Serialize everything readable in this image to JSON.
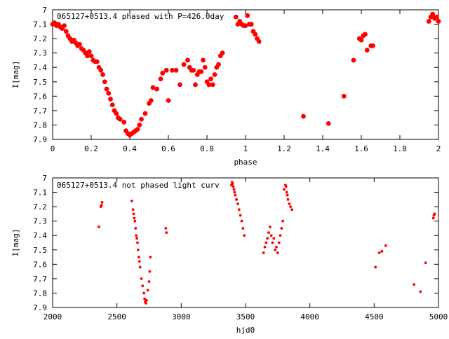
{
  "chart_data": [
    {
      "type": "scatter",
      "title": "065127+0513.4 phased with P=426.0day",
      "xlabel": "phase",
      "ylabel": "I[mag]",
      "xlim": [
        0,
        2
      ],
      "ylim": [
        7.9,
        7.0
      ],
      "y_inverted": true,
      "grid": false,
      "legend": "none",
      "marker": "filled-circle",
      "point_color": "#ff0000",
      "xticks": [
        0,
        0.2,
        0.4,
        0.6,
        0.8,
        1,
        1.2,
        1.4,
        1.6,
        1.8,
        2
      ],
      "xtick_labels": [
        "0",
        "0.2",
        "0.4",
        "0.6",
        "0.8",
        "1",
        "1.2",
        "1.4",
        "1.6",
        "1.8",
        "2"
      ],
      "yticks": [
        7.0,
        7.1,
        7.2,
        7.3,
        7.4,
        7.5,
        7.6,
        7.7,
        7.8,
        7.9
      ],
      "ytick_labels": [
        "7",
        "7.1",
        "7.2",
        "7.3",
        "7.4",
        "7.5",
        "7.6",
        "7.7",
        "7.8",
        "7.9"
      ],
      "points": [
        [
          0.0,
          7.1
        ],
        [
          0.01,
          7.09
        ],
        [
          0.02,
          7.11
        ],
        [
          0.03,
          7.1
        ],
        [
          0.04,
          7.12
        ],
        [
          0.05,
          7.13
        ],
        [
          0.06,
          7.11
        ],
        [
          0.07,
          7.15
        ],
        [
          0.08,
          7.18
        ],
        [
          0.09,
          7.2
        ],
        [
          0.1,
          7.22
        ],
        [
          0.11,
          7.21
        ],
        [
          0.12,
          7.23
        ],
        [
          0.13,
          7.25
        ],
        [
          0.14,
          7.24
        ],
        [
          0.15,
          7.27
        ],
        [
          0.16,
          7.28
        ],
        [
          0.17,
          7.3
        ],
        [
          0.18,
          7.32
        ],
        [
          0.19,
          7.29
        ],
        [
          0.2,
          7.32
        ],
        [
          0.21,
          7.35
        ],
        [
          0.22,
          7.36
        ],
        [
          0.23,
          7.36
        ],
        [
          0.24,
          7.4
        ],
        [
          0.25,
          7.42
        ],
        [
          0.26,
          7.45
        ],
        [
          0.27,
          7.5
        ],
        [
          0.28,
          7.55
        ],
        [
          0.29,
          7.58
        ],
        [
          0.3,
          7.62
        ],
        [
          0.31,
          7.66
        ],
        [
          0.32,
          7.7
        ],
        [
          0.33,
          7.72
        ],
        [
          0.34,
          7.75
        ],
        [
          0.35,
          7.76
        ],
        [
          0.37,
          7.78
        ],
        [
          0.38,
          7.84
        ],
        [
          0.39,
          7.86
        ],
        [
          0.4,
          7.87
        ],
        [
          0.41,
          7.86
        ],
        [
          0.42,
          7.85
        ],
        [
          0.43,
          7.84
        ],
        [
          0.44,
          7.83
        ],
        [
          0.45,
          7.8
        ],
        [
          0.46,
          7.76
        ],
        [
          0.48,
          7.72
        ],
        [
          0.5,
          7.65
        ],
        [
          0.51,
          7.63
        ],
        [
          0.52,
          7.54
        ],
        [
          0.54,
          7.55
        ],
        [
          0.56,
          7.48
        ],
        [
          0.57,
          7.44
        ],
        [
          0.59,
          7.42
        ],
        [
          0.6,
          7.63
        ],
        [
          0.62,
          7.42
        ],
        [
          0.64,
          7.42
        ],
        [
          0.66,
          7.52
        ],
        [
          0.68,
          7.38
        ],
        [
          0.7,
          7.35
        ],
        [
          0.71,
          7.4
        ],
        [
          0.72,
          7.42
        ],
        [
          0.73,
          7.42
        ],
        [
          0.74,
          7.52
        ],
        [
          0.75,
          7.45
        ],
        [
          0.76,
          7.43
        ],
        [
          0.77,
          7.43
        ],
        [
          0.78,
          7.35
        ],
        [
          0.79,
          7.4
        ],
        [
          0.8,
          7.5
        ],
        [
          0.81,
          7.52
        ],
        [
          0.82,
          7.48
        ],
        [
          0.83,
          7.52
        ],
        [
          0.84,
          7.45
        ],
        [
          0.85,
          7.4
        ],
        [
          0.86,
          7.38
        ],
        [
          0.87,
          7.32
        ],
        [
          0.88,
          7.3
        ],
        [
          0.95,
          7.05
        ],
        [
          0.96,
          7.1
        ],
        [
          0.97,
          7.08
        ],
        [
          0.98,
          7.1
        ],
        [
          0.99,
          7.11
        ],
        [
          1.0,
          7.11
        ],
        [
          1.01,
          7.04
        ],
        [
          1.02,
          7.1
        ],
        [
          1.03,
          7.1
        ],
        [
          1.04,
          7.15
        ],
        [
          1.05,
          7.17
        ],
        [
          1.06,
          7.2
        ],
        [
          1.07,
          7.22
        ],
        [
          1.3,
          7.74
        ],
        [
          1.43,
          7.79
        ],
        [
          1.51,
          7.6
        ],
        [
          1.56,
          7.35
        ],
        [
          1.59,
          7.2
        ],
        [
          1.6,
          7.21
        ],
        [
          1.61,
          7.18
        ],
        [
          1.62,
          7.17
        ],
        [
          1.63,
          7.28
        ],
        [
          1.65,
          7.25
        ],
        [
          1.66,
          7.25
        ],
        [
          1.95,
          7.08
        ],
        [
          1.96,
          7.05
        ],
        [
          1.97,
          7.03
        ],
        [
          1.98,
          7.06
        ],
        [
          1.99,
          7.05
        ],
        [
          2.0,
          7.08
        ]
      ]
    },
    {
      "type": "scatter",
      "title": "065127+0513.4 not phased light curv",
      "xlabel": "hjd0",
      "ylabel": "I[mag]",
      "xlim": [
        2000,
        5000
      ],
      "ylim": [
        7.9,
        7.0
      ],
      "y_inverted": true,
      "grid": false,
      "legend": "none",
      "marker": "small-dot",
      "point_color": "#ff0000",
      "xticks": [
        2000,
        2500,
        3000,
        3500,
        4000,
        4500,
        5000
      ],
      "xtick_labels": [
        "2000",
        "2500",
        "3000",
        "3500",
        "4000",
        "4500",
        "5000"
      ],
      "yticks": [
        7.0,
        7.1,
        7.2,
        7.3,
        7.4,
        7.5,
        7.6,
        7.7,
        7.8,
        7.9
      ],
      "ytick_labels": [
        "7",
        "7.1",
        "7.2",
        "7.3",
        "7.4",
        "7.5",
        "7.6",
        "7.7",
        "7.8",
        "7.9"
      ],
      "points": [
        [
          2360,
          7.34
        ],
        [
          2375,
          7.2
        ],
        [
          2380,
          7.19
        ],
        [
          2385,
          7.17
        ],
        [
          2615,
          7.16
        ],
        [
          2625,
          7.22
        ],
        [
          2630,
          7.25
        ],
        [
          2635,
          7.28
        ],
        [
          2640,
          7.3
        ],
        [
          2645,
          7.35
        ],
        [
          2650,
          7.4
        ],
        [
          2655,
          7.42
        ],
        [
          2660,
          7.45
        ],
        [
          2665,
          7.5
        ],
        [
          2670,
          7.55
        ],
        [
          2675,
          7.58
        ],
        [
          2680,
          7.62
        ],
        [
          2690,
          7.7
        ],
        [
          2700,
          7.75
        ],
        [
          2710,
          7.8
        ],
        [
          2715,
          7.84
        ],
        [
          2720,
          7.86
        ],
        [
          2725,
          7.87
        ],
        [
          2730,
          7.85
        ],
        [
          2740,
          7.78
        ],
        [
          2750,
          7.72
        ],
        [
          2755,
          7.65
        ],
        [
          2760,
          7.55
        ],
        [
          2880,
          7.35
        ],
        [
          2885,
          7.38
        ],
        [
          3390,
          7.05
        ],
        [
          3395,
          7.03
        ],
        [
          3400,
          7.04
        ],
        [
          3405,
          7.06
        ],
        [
          3410,
          7.08
        ],
        [
          3415,
          7.1
        ],
        [
          3420,
          7.12
        ],
        [
          3430,
          7.15
        ],
        [
          3440,
          7.18
        ],
        [
          3450,
          7.22
        ],
        [
          3460,
          7.26
        ],
        [
          3470,
          7.3
        ],
        [
          3480,
          7.35
        ],
        [
          3490,
          7.4
        ],
        [
          3640,
          7.52
        ],
        [
          3650,
          7.48
        ],
        [
          3660,
          7.45
        ],
        [
          3670,
          7.42
        ],
        [
          3680,
          7.38
        ],
        [
          3690,
          7.34
        ],
        [
          3700,
          7.4
        ],
        [
          3710,
          7.45
        ],
        [
          3720,
          7.42
        ],
        [
          3730,
          7.5
        ],
        [
          3740,
          7.48
        ],
        [
          3750,
          7.52
        ],
        [
          3760,
          7.45
        ],
        [
          3770,
          7.4
        ],
        [
          3780,
          7.35
        ],
        [
          3790,
          7.3
        ],
        [
          3800,
          7.08
        ],
        [
          3810,
          7.05
        ],
        [
          3815,
          7.06
        ],
        [
          3820,
          7.1
        ],
        [
          3825,
          7.12
        ],
        [
          3830,
          7.15
        ],
        [
          3840,
          7.18
        ],
        [
          3850,
          7.2
        ],
        [
          3860,
          7.22
        ],
        [
          4510,
          7.62
        ],
        [
          4540,
          7.52
        ],
        [
          4560,
          7.51
        ],
        [
          4590,
          7.47
        ],
        [
          4810,
          7.74
        ],
        [
          4860,
          7.79
        ],
        [
          4900,
          7.59
        ],
        [
          4960,
          7.28
        ],
        [
          4965,
          7.26
        ],
        [
          4970,
          7.25
        ]
      ]
    }
  ]
}
